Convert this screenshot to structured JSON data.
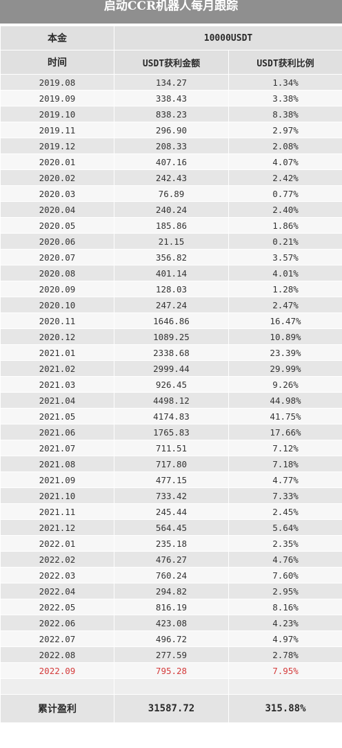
{
  "title": "启动CCR机器人每月跟踪",
  "principal": {
    "label": "本金",
    "value": "10000USDT"
  },
  "columns": [
    "时间",
    "USDT获利金额",
    "USDT获利比例"
  ],
  "rows": [
    {
      "month": "2019.08",
      "amount": "134.27",
      "ratio": "1.34%"
    },
    {
      "month": "2019.09",
      "amount": "338.43",
      "ratio": "3.38%"
    },
    {
      "month": "2019.10",
      "amount": "838.23",
      "ratio": "8.38%"
    },
    {
      "month": "2019.11",
      "amount": "296.90",
      "ratio": "2.97%"
    },
    {
      "month": "2019.12",
      "amount": "208.33",
      "ratio": "2.08%"
    },
    {
      "month": "2020.01",
      "amount": "407.16",
      "ratio": "4.07%"
    },
    {
      "month": "2020.02",
      "amount": "242.43",
      "ratio": "2.42%"
    },
    {
      "month": "2020.03",
      "amount": "76.89",
      "ratio": "0.77%"
    },
    {
      "month": "2020.04",
      "amount": "240.24",
      "ratio": "2.40%"
    },
    {
      "month": "2020.05",
      "amount": "185.86",
      "ratio": "1.86%"
    },
    {
      "month": "2020.06",
      "amount": "21.15",
      "ratio": "0.21%"
    },
    {
      "month": "2020.07",
      "amount": "356.82",
      "ratio": "3.57%"
    },
    {
      "month": "2020.08",
      "amount": "401.14",
      "ratio": "4.01%"
    },
    {
      "month": "2020.09",
      "amount": "128.03",
      "ratio": "1.28%"
    },
    {
      "month": "2020.10",
      "amount": "247.24",
      "ratio": "2.47%"
    },
    {
      "month": "2020.11",
      "amount": "1646.86",
      "ratio": "16.47%"
    },
    {
      "month": "2020.12",
      "amount": "1089.25",
      "ratio": "10.89%"
    },
    {
      "month": "2021.01",
      "amount": "2338.68",
      "ratio": "23.39%"
    },
    {
      "month": "2021.02",
      "amount": "2999.44",
      "ratio": "29.99%"
    },
    {
      "month": "2021.03",
      "amount": "926.45",
      "ratio": "9.26%"
    },
    {
      "month": "2021.04",
      "amount": "4498.12",
      "ratio": "44.98%"
    },
    {
      "month": "2021.05",
      "amount": "4174.83",
      "ratio": "41.75%"
    },
    {
      "month": "2021.06",
      "amount": "1765.83",
      "ratio": "17.66%"
    },
    {
      "month": "2021.07",
      "amount": "711.51",
      "ratio": "7.12%"
    },
    {
      "month": "2021.08",
      "amount": "717.80",
      "ratio": "7.18%"
    },
    {
      "month": "2021.09",
      "amount": "477.15",
      "ratio": "4.77%"
    },
    {
      "month": "2021.10",
      "amount": "733.42",
      "ratio": "7.33%"
    },
    {
      "month": "2021.11",
      "amount": "245.44",
      "ratio": "2.45%"
    },
    {
      "month": "2021.12",
      "amount": "564.45",
      "ratio": "5.64%"
    },
    {
      "month": "2022.01",
      "amount": "235.18",
      "ratio": "2.35%"
    },
    {
      "month": "2022.02",
      "amount": "476.27",
      "ratio": "4.76%"
    },
    {
      "month": "2022.03",
      "amount": "760.24",
      "ratio": "7.60%"
    },
    {
      "month": "2022.04",
      "amount": "294.82",
      "ratio": "2.95%"
    },
    {
      "month": "2022.05",
      "amount": "816.19",
      "ratio": "8.16%"
    },
    {
      "month": "2022.06",
      "amount": "423.08",
      "ratio": "4.23%"
    },
    {
      "month": "2022.07",
      "amount": "496.72",
      "ratio": "4.97%"
    },
    {
      "month": "2022.08",
      "amount": "277.59",
      "ratio": "2.78%"
    },
    {
      "month": "2022.09",
      "amount": "795.28",
      "ratio": "7.95%",
      "highlight": true
    }
  ],
  "total": {
    "label": "累计盈利",
    "amount": "31587.72",
    "ratio": "315.88%"
  },
  "colors": {
    "highlight_text": "#d43b3b",
    "title_bg": "#8f8f8f"
  }
}
